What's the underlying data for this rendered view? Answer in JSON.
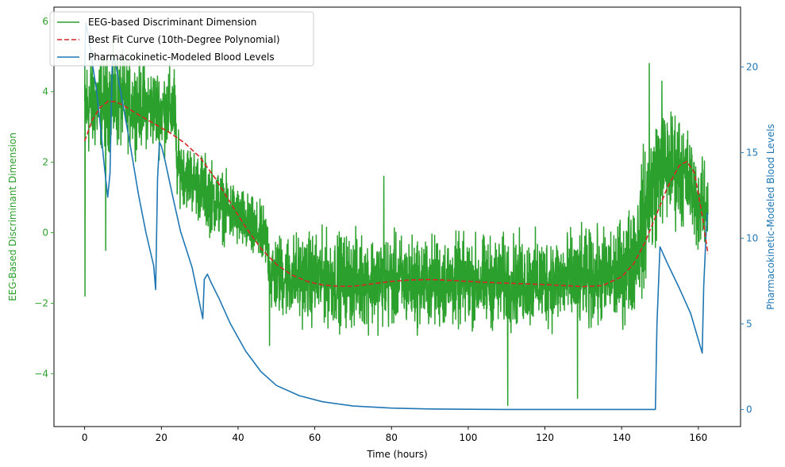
{
  "chart_data": {
    "type": "line",
    "xlabel": "Time (hours)",
    "ylabel_left": "EEG-Based Discriminant Dimension",
    "ylabel_right": "Pharmacokinetic-Modeled Blood Levels",
    "xlim": [
      -8,
      171
    ],
    "ylim_left": [
      -5.5,
      6.4
    ],
    "ylim_right": [
      -1,
      23.5
    ],
    "x_ticks": [
      0,
      20,
      40,
      60,
      80,
      100,
      120,
      140,
      160
    ],
    "x_tick_labels": [
      "0",
      "20",
      "40",
      "60",
      "80",
      "100",
      "120",
      "140",
      "160"
    ],
    "y_left_ticks": [
      -4,
      -2,
      0,
      2,
      4,
      6
    ],
    "y_left_tick_labels": [
      "−4",
      "−2",
      "0",
      "2",
      "4",
      "6"
    ],
    "y_right_ticks": [
      0,
      5,
      10,
      15,
      20
    ],
    "y_right_tick_labels": [
      "0",
      "5",
      "10",
      "15",
      "20"
    ],
    "grid": false,
    "legend_position": "top-left",
    "colors": {
      "eeg": "#2ca02c",
      "fit": "#d62728",
      "blood": "#1f77b4",
      "left_axis": "#2ca02c",
      "right_axis": "#1f77b4"
    },
    "series": [
      {
        "name": "EEG-based Discriminant Dimension",
        "axis": "left",
        "style": "solid",
        "color": "#2ca02c",
        "envelope": {
          "x": [
            0,
            2,
            5,
            8,
            12,
            16,
            20,
            23.5,
            24,
            28,
            32,
            36,
            40,
            44,
            47.5,
            48.5,
            55,
            70,
            90,
            110,
            125,
            135,
            140,
            143,
            145,
            147,
            150,
            155,
            158,
            160,
            162.5
          ],
          "low": [
            1.4,
            1.6,
            1.9,
            1.8,
            1.9,
            2.0,
            1.8,
            1.8,
            0.6,
            0.2,
            -0.4,
            -0.6,
            -0.8,
            -1.2,
            -1.4,
            -2.8,
            -3.0,
            -3.2,
            -3.2,
            -3.2,
            -3.2,
            -3.2,
            -3.2,
            -2.9,
            -2.6,
            -2.0,
            -0.4,
            -0.4,
            -0.5,
            -1.1,
            -0.8
          ],
          "high": [
            5.8,
            5.7,
            5.5,
            5.7,
            5.4,
            5.2,
            5.1,
            5.3,
            3.2,
            2.8,
            2.6,
            2.1,
            1.7,
            1.3,
            1.0,
            0.4,
            0.5,
            0.5,
            0.4,
            0.4,
            0.5,
            0.6,
            0.9,
            1.6,
            2.6,
            3.8,
            4.2,
            4.1,
            3.3,
            2.6,
            2.3
          ]
        },
        "spikes": [
          {
            "x": 0.1,
            "y": -1.8
          },
          {
            "x": 5.5,
            "y": -0.5
          },
          {
            "x": 48.2,
            "y": -3.2
          },
          {
            "x": 78,
            "y": 1.6
          },
          {
            "x": 110.3,
            "y": -4.9
          },
          {
            "x": 128.5,
            "y": -4.7
          },
          {
            "x": 147.2,
            "y": 4.8
          },
          {
            "x": 150.5,
            "y": 4.3
          }
        ]
      },
      {
        "name": "Best Fit Curve (10th-Degree Polynomial)",
        "axis": "left",
        "style": "dashed",
        "color": "#d62728",
        "x": [
          0,
          2,
          4,
          6,
          8,
          10,
          14,
          18,
          22,
          26,
          30,
          34,
          38,
          42,
          46,
          50,
          54,
          58,
          62,
          66,
          70,
          75,
          80,
          85,
          90,
          95,
          100,
          105,
          110,
          115,
          120,
          125,
          130,
          135,
          140,
          143,
          146,
          149,
          152,
          155,
          157,
          159,
          161,
          162.5
        ],
        "values": [
          2.6,
          3.2,
          3.55,
          3.72,
          3.72,
          3.62,
          3.35,
          3.1,
          2.85,
          2.55,
          2.15,
          1.55,
          0.85,
          0.15,
          -0.45,
          -0.9,
          -1.2,
          -1.38,
          -1.48,
          -1.52,
          -1.52,
          -1.45,
          -1.38,
          -1.34,
          -1.33,
          -1.35,
          -1.38,
          -1.41,
          -1.43,
          -1.45,
          -1.47,
          -1.5,
          -1.53,
          -1.5,
          -1.25,
          -0.9,
          -0.3,
          0.5,
          1.3,
          1.9,
          2.02,
          1.7,
          0.5,
          -0.6
        ]
      },
      {
        "name": "Pharmacokinetic-Modeled Blood Levels",
        "axis": "right",
        "style": "solid",
        "color": "#1f77b4",
        "x": [
          0,
          0.3,
          1,
          2,
          3,
          4,
          5,
          6,
          6.6,
          7.2,
          8,
          9,
          10,
          12,
          14,
          16,
          18,
          18.5,
          19,
          19.5,
          20,
          21,
          23,
          25,
          28,
          30.8,
          31.2,
          32,
          33,
          35,
          38,
          42,
          46,
          50,
          56,
          62,
          70,
          80,
          90,
          100,
          110,
          120,
          130,
          140,
          148.8,
          149.2,
          150,
          152,
          155,
          158,
          161,
          161.4,
          162,
          162.3
        ],
        "values": [
          20,
          22.6,
          21.8,
          20.2,
          18.8,
          16.8,
          14.5,
          12.4,
          13.8,
          20.5,
          20.3,
          19.0,
          17.8,
          15.3,
          12.6,
          10.3,
          8.4,
          7.0,
          13.5,
          15.6,
          15.4,
          14.5,
          12.4,
          10.4,
          8.3,
          5.3,
          7.6,
          7.9,
          7.4,
          6.5,
          5.0,
          3.4,
          2.2,
          1.4,
          0.8,
          0.45,
          0.2,
          0.08,
          0.03,
          0.01,
          0.0,
          0.0,
          0.0,
          0.0,
          0.0,
          5.0,
          9.5,
          8.5,
          7.1,
          5.6,
          3.3,
          7.2,
          10.2,
          11.5
        ]
      }
    ]
  }
}
